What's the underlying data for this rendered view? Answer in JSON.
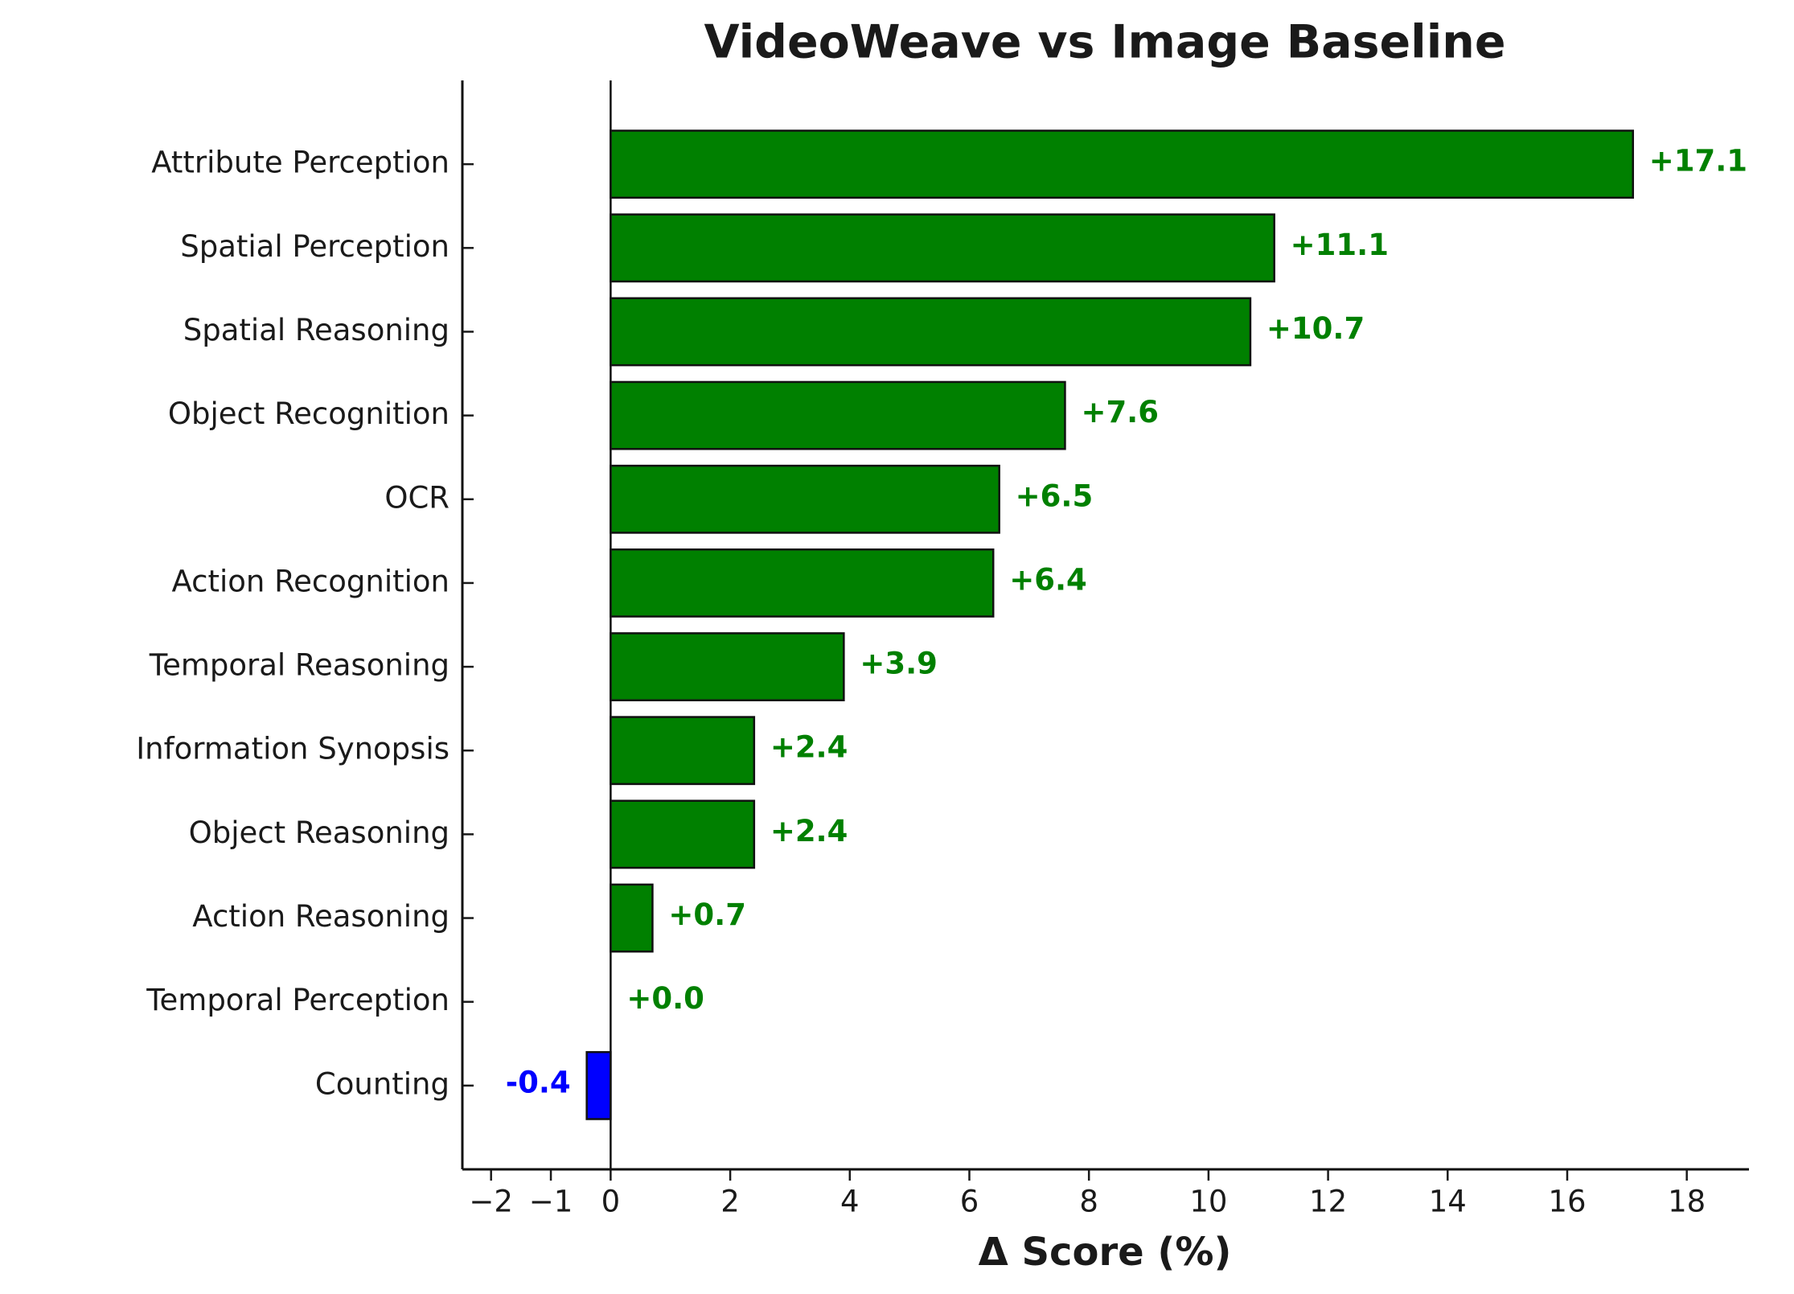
{
  "chart_data": {
    "type": "barh",
    "title": "VideoWeave vs Image Baseline",
    "x_label": "Δ Score (%)",
    "categories": [
      "Attribute Perception",
      "Spatial Perception",
      "Spatial Reasoning",
      "Object Recognition",
      "OCR",
      "Action Recognition",
      "Temporal Reasoning",
      "Information Synopsis",
      "Object Reasoning",
      "Action Reasoning",
      "Temporal Perception",
      "Counting"
    ],
    "values": [
      17.1,
      11.1,
      10.7,
      7.6,
      6.5,
      6.4,
      3.9,
      2.4,
      2.4,
      0.7,
      0.0,
      -0.4
    ],
    "value_labels": [
      "+17.1",
      "+11.1",
      "+10.7",
      "+7.6",
      "+6.5",
      "+6.4",
      "+3.9",
      "+2.4",
      "+2.4",
      "+0.7",
      "+0.0",
      "-0.4"
    ],
    "colors": [
      "#008000",
      "#008000",
      "#008000",
      "#008000",
      "#008000",
      "#008000",
      "#008000",
      "#008000",
      "#008000",
      "#008000",
      "#008000",
      "#0000ff"
    ],
    "xlim": [
      -2.48,
      19.04
    ],
    "xticks": [
      {
        "value": -2,
        "label": "−2"
      },
      {
        "value": -1,
        "label": "−1"
      },
      0,
      2,
      4,
      6,
      8,
      10,
      12,
      14,
      16,
      18
    ],
    "zero_line": true
  }
}
